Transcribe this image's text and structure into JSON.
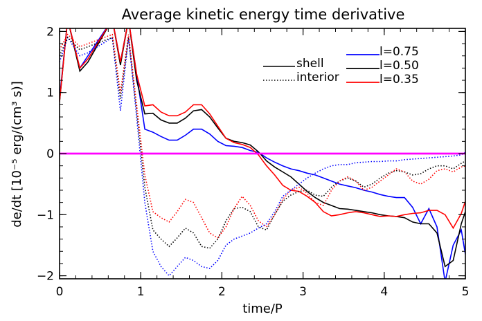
{
  "chart_data": {
    "type": "line",
    "title": "Average kinetic energy time derivative",
    "xlabel": "time/P",
    "ylabel": "de/dt [10⁻⁵ erg/(cm³ s)]",
    "xlim": [
      0,
      5
    ],
    "ylim": [
      -2.05,
      2.05
    ],
    "xticks": [
      0,
      1,
      2,
      3,
      4,
      5
    ],
    "xtick_labels": [
      "0",
      "1",
      "2",
      "3",
      "4",
      "5"
    ],
    "yticks": [
      -2,
      -1,
      0,
      1,
      2
    ],
    "ytick_labels": [
      "−2",
      "−1",
      "0",
      "1",
      "2"
    ],
    "grid": false,
    "legend_style": [
      {
        "label": "shell",
        "dash": "solid"
      },
      {
        "label": "interior",
        "dash": "dotted"
      }
    ],
    "legend_color": [
      {
        "label": "l=0.75",
        "color": "#0000ff"
      },
      {
        "label": "l=0.50",
        "color": "#000000"
      },
      {
        "label": "l=0.35",
        "color": "#ff0000"
      }
    ],
    "reference_line": {
      "y": 0,
      "color": "#ff00ff"
    },
    "series": [
      {
        "color": "#0000ff",
        "dash": "solid",
        "x": [
          0,
          0.1,
          0.25,
          0.35,
          0.65,
          0.75,
          0.85,
          0.95,
          1.05,
          1.15,
          1.25,
          1.35,
          1.45,
          1.55,
          1.65,
          1.75,
          1.85,
          1.95,
          2.05,
          2.15,
          2.25,
          2.35,
          2.45,
          2.55,
          2.65,
          2.75,
          2.85,
          2.95,
          3.05,
          3.15,
          3.25,
          3.35,
          3.45,
          3.55,
          3.65,
          3.75,
          3.85,
          3.95,
          4.05,
          4.15,
          4.25,
          4.35,
          4.45,
          4.55,
          4.65,
          4.75,
          4.85,
          4.95,
          5.0
        ],
        "y": [
          0.9,
          2.2,
          1.4,
          1.6,
          2.2,
          1.5,
          2.2,
          1.3,
          0.4,
          0.35,
          0.28,
          0.22,
          0.22,
          0.3,
          0.4,
          0.4,
          0.32,
          0.2,
          0.13,
          0.12,
          0.1,
          0.05,
          0.02,
          -0.07,
          -0.14,
          -0.2,
          -0.25,
          -0.28,
          -0.32,
          -0.35,
          -0.4,
          -0.45,
          -0.5,
          -0.53,
          -0.56,
          -0.6,
          -0.63,
          -0.67,
          -0.7,
          -0.72,
          -0.72,
          -0.88,
          -1.15,
          -0.9,
          -1.2,
          -2.1,
          -1.5,
          -1.25,
          -1.65
        ]
      },
      {
        "color": "#000000",
        "dash": "solid",
        "x": [
          0,
          0.1,
          0.25,
          0.35,
          0.65,
          0.75,
          0.85,
          0.95,
          1.05,
          1.15,
          1.25,
          1.35,
          1.45,
          1.55,
          1.65,
          1.75,
          1.85,
          1.95,
          2.05,
          2.15,
          2.25,
          2.35,
          2.45,
          2.55,
          2.65,
          2.75,
          2.85,
          2.95,
          3.05,
          3.15,
          3.25,
          3.35,
          3.45,
          3.55,
          3.65,
          3.75,
          3.85,
          3.95,
          4.05,
          4.15,
          4.25,
          4.35,
          4.45,
          4.55,
          4.65,
          4.75,
          4.85,
          4.95,
          5.0
        ],
        "y": [
          0.85,
          2.2,
          1.35,
          1.5,
          2.2,
          1.45,
          2.2,
          1.2,
          0.65,
          0.66,
          0.55,
          0.5,
          0.5,
          0.58,
          0.7,
          0.72,
          0.6,
          0.42,
          0.25,
          0.2,
          0.18,
          0.14,
          0.03,
          -0.12,
          -0.22,
          -0.3,
          -0.38,
          -0.5,
          -0.62,
          -0.72,
          -0.8,
          -0.85,
          -0.9,
          -0.91,
          -0.93,
          -0.95,
          -0.97,
          -1.0,
          -1.02,
          -1.03,
          -1.05,
          -1.12,
          -1.15,
          -1.15,
          -1.3,
          -1.85,
          -1.75,
          -1.15,
          -0.95
        ]
      },
      {
        "color": "#ff0000",
        "dash": "solid",
        "x": [
          0,
          0.1,
          0.25,
          0.35,
          0.65,
          0.75,
          0.85,
          0.95,
          1.05,
          1.15,
          1.25,
          1.35,
          1.45,
          1.55,
          1.65,
          1.75,
          1.85,
          1.95,
          2.05,
          2.15,
          2.25,
          2.35,
          2.45,
          2.55,
          2.65,
          2.75,
          2.85,
          2.95,
          3.05,
          3.15,
          3.25,
          3.35,
          3.45,
          3.55,
          3.65,
          3.75,
          3.85,
          3.95,
          4.05,
          4.15,
          4.25,
          4.35,
          4.45,
          4.55,
          4.65,
          4.75,
          4.85,
          4.95,
          5.0
        ],
        "y": [
          0.85,
          2.2,
          1.4,
          1.55,
          2.2,
          1.5,
          2.2,
          1.3,
          0.78,
          0.8,
          0.68,
          0.62,
          0.62,
          0.68,
          0.8,
          0.8,
          0.65,
          0.45,
          0.25,
          0.18,
          0.15,
          0.1,
          -0.02,
          -0.2,
          -0.35,
          -0.52,
          -0.6,
          -0.62,
          -0.7,
          -0.8,
          -0.95,
          -1.02,
          -1.0,
          -0.97,
          -0.95,
          -0.97,
          -1.0,
          -1.03,
          -1.02,
          -1.03,
          -1.0,
          -0.98,
          -0.97,
          -0.93,
          -0.93,
          -1.0,
          -1.22,
          -0.98,
          -0.78
        ]
      },
      {
        "color": "#0000ff",
        "dash": "dotted",
        "x": [
          0,
          0.1,
          0.25,
          0.35,
          0.65,
          0.75,
          0.85,
          0.95,
          1.05,
          1.15,
          1.25,
          1.35,
          1.45,
          1.55,
          1.65,
          1.75,
          1.85,
          1.95,
          2.05,
          2.15,
          2.25,
          2.35,
          2.45,
          2.55,
          2.65,
          2.75,
          2.85,
          2.95,
          3.05,
          3.15,
          3.25,
          3.35,
          3.45,
          3.55,
          3.65,
          3.75,
          3.85,
          3.95,
          4.05,
          4.15,
          4.25,
          4.35,
          4.45,
          4.55,
          4.65,
          4.75,
          4.85,
          4.95,
          5.0
        ],
        "y": [
          1.5,
          1.9,
          1.6,
          1.65,
          1.9,
          0.7,
          1.9,
          0.6,
          -0.8,
          -1.6,
          -1.85,
          -2.0,
          -1.85,
          -1.7,
          -1.75,
          -1.85,
          -1.88,
          -1.75,
          -1.5,
          -1.4,
          -1.35,
          -1.3,
          -1.22,
          -1.15,
          -0.95,
          -0.7,
          -0.6,
          -0.5,
          -0.4,
          -0.32,
          -0.25,
          -0.2,
          -0.18,
          -0.18,
          -0.15,
          -0.14,
          -0.13,
          -0.13,
          -0.12,
          -0.12,
          -0.1,
          -0.09,
          -0.08,
          -0.07,
          -0.06,
          -0.05,
          -0.04,
          -0.02,
          0.02
        ]
      },
      {
        "color": "#000000",
        "dash": "dotted",
        "x": [
          0,
          0.1,
          0.25,
          0.35,
          0.65,
          0.75,
          0.85,
          0.95,
          1.05,
          1.15,
          1.25,
          1.35,
          1.45,
          1.55,
          1.65,
          1.75,
          1.85,
          1.95,
          2.05,
          2.15,
          2.25,
          2.35,
          2.45,
          2.55,
          2.65,
          2.75,
          2.85,
          2.95,
          3.05,
          3.15,
          3.25,
          3.35,
          3.45,
          3.55,
          3.65,
          3.75,
          3.85,
          3.95,
          4.05,
          4.15,
          4.25,
          4.35,
          4.45,
          4.55,
          4.65,
          4.75,
          4.85,
          4.95,
          5.0
        ],
        "y": [
          1.6,
          1.9,
          1.7,
          1.75,
          1.9,
          0.9,
          1.9,
          0.7,
          -0.55,
          -1.25,
          -1.4,
          -1.52,
          -1.38,
          -1.22,
          -1.3,
          -1.52,
          -1.55,
          -1.4,
          -1.1,
          -0.9,
          -0.88,
          -0.95,
          -1.2,
          -1.25,
          -1.0,
          -0.78,
          -0.68,
          -0.62,
          -0.6,
          -0.68,
          -0.7,
          -0.55,
          -0.45,
          -0.4,
          -0.45,
          -0.55,
          -0.5,
          -0.4,
          -0.32,
          -0.28,
          -0.3,
          -0.35,
          -0.33,
          -0.25,
          -0.2,
          -0.2,
          -0.25,
          -0.16,
          -0.12
        ]
      },
      {
        "color": "#ff0000",
        "dash": "dotted",
        "x": [
          0,
          0.1,
          0.25,
          0.35,
          0.65,
          0.75,
          0.85,
          0.95,
          1.05,
          1.15,
          1.25,
          1.35,
          1.45,
          1.55,
          1.65,
          1.75,
          1.85,
          1.95,
          2.05,
          2.15,
          2.25,
          2.35,
          2.45,
          2.55,
          2.65,
          2.75,
          2.85,
          2.95,
          3.05,
          3.15,
          3.25,
          3.35,
          3.45,
          3.55,
          3.65,
          3.75,
          3.85,
          3.95,
          4.05,
          4.15,
          4.25,
          4.35,
          4.45,
          4.55,
          4.65,
          4.75,
          4.85,
          4.95,
          5.0
        ],
        "y": [
          1.7,
          1.95,
          1.75,
          1.8,
          1.95,
          1.0,
          1.95,
          0.8,
          -0.35,
          -0.95,
          -1.05,
          -1.12,
          -0.95,
          -0.75,
          -0.8,
          -1.05,
          -1.3,
          -1.38,
          -1.2,
          -0.9,
          -0.7,
          -0.85,
          -1.1,
          -1.2,
          -1.0,
          -0.75,
          -0.6,
          -0.55,
          -0.65,
          -0.8,
          -0.85,
          -0.6,
          -0.45,
          -0.38,
          -0.45,
          -0.6,
          -0.55,
          -0.45,
          -0.35,
          -0.25,
          -0.3,
          -0.45,
          -0.5,
          -0.42,
          -0.28,
          -0.25,
          -0.3,
          -0.22,
          -0.2
        ]
      }
    ]
  }
}
